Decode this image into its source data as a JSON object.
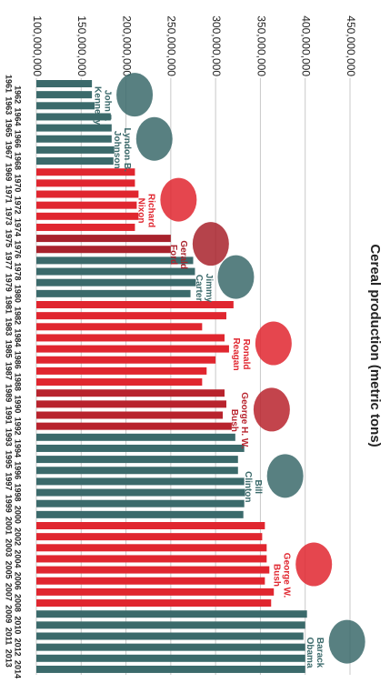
{
  "chart_data": {
    "type": "bar",
    "orientation": "horizontal",
    "title": "Cereal production (metric tons)",
    "categories": [
      "1961",
      "1962",
      "1963",
      "1964",
      "1965",
      "1966",
      "1967",
      "1968",
      "1969",
      "1970",
      "1971",
      "1972",
      "1973",
      "1974",
      "1975",
      "1976",
      "1977",
      "1978",
      "1979",
      "1980",
      "1981",
      "1982",
      "1983",
      "1984",
      "1985",
      "1986",
      "1987",
      "1988",
      "1989",
      "1990",
      "1991",
      "1992",
      "1993",
      "1994",
      "1995",
      "1996",
      "1997",
      "1998",
      "1999",
      "2000",
      "2001",
      "2002",
      "2003",
      "2004",
      "2005",
      "2006",
      "2007",
      "2008",
      "2009",
      "2010",
      "2011",
      "2012",
      "2013",
      "2014"
    ],
    "values": [
      162000000,
      162000000,
      165000000,
      183000000,
      184000000,
      184000000,
      187000000,
      186000000,
      210000000,
      210000000,
      214000000,
      212000000,
      214000000,
      210000000,
      250000000,
      250000000,
      275000000,
      277000000,
      278000000,
      272000000,
      320000000,
      312000000,
      285000000,
      310000000,
      315000000,
      300000000,
      290000000,
      285000000,
      310000000,
      312000000,
      308000000,
      318000000,
      322000000,
      332000000,
      325000000,
      325000000,
      332000000,
      333000000,
      332000000,
      331000000,
      355000000,
      352000000,
      357000000,
      357000000,
      360000000,
      355000000,
      365000000,
      362000000,
      402000000,
      400000000,
      398000000,
      400000000,
      400000000,
      400000000
    ],
    "colors": [
      "#3b6a6b",
      "#3b6a6b",
      "#3b6a6b",
      "#3b6a6b",
      "#3b6a6b",
      "#3b6a6b",
      "#3b6a6b",
      "#3b6a6b",
      "#e0262f",
      "#e0262f",
      "#e0262f",
      "#e0262f",
      "#e0262f",
      "#e0262f",
      "#a8222c",
      "#a8222c",
      "#3b6a6b",
      "#3b6a6b",
      "#3b6a6b",
      "#3b6a6b",
      "#e0262f",
      "#e0262f",
      "#e0262f",
      "#e0262f",
      "#e0262f",
      "#e0262f",
      "#e0262f",
      "#e0262f",
      "#b8232d",
      "#b8232d",
      "#b8232d",
      "#b8232d",
      "#3b6a6b",
      "#3b6a6b",
      "#3b6a6b",
      "#3b6a6b",
      "#3b6a6b",
      "#3b6a6b",
      "#3b6a6b",
      "#3b6a6b",
      "#e0262f",
      "#e0262f",
      "#e0262f",
      "#e0262f",
      "#e0262f",
      "#e0262f",
      "#e0262f",
      "#e0262f",
      "#3b6a6b",
      "#3b6a6b",
      "#3b6a6b",
      "#3b6a6b",
      "#3b6a6b",
      "#3b6a6b"
    ],
    "ylim": [
      100000000,
      450000000
    ],
    "yticks": [
      {
        "value": 100000000,
        "label": "100,000,000"
      },
      {
        "value": 150000000,
        "label": "150,000,000"
      },
      {
        "value": 200000000,
        "label": "200,000,000"
      },
      {
        "value": 250000000,
        "label": "250,000,000"
      },
      {
        "value": 300000000,
        "label": "300,000,000"
      },
      {
        "value": 350000000,
        "label": "350,000,000"
      },
      {
        "value": 400000000,
        "label": "400,000,000"
      },
      {
        "value": 450000000,
        "label": "450,000,000"
      }
    ],
    "grid": true,
    "annotations": [
      [
        "John F.",
        "Kennedy"
      ],
      [
        "Lyndon B.",
        "Johnson"
      ],
      [
        "Richard",
        "Nixon"
      ],
      [
        "Gerald",
        "Ford"
      ],
      [
        "Jimmy",
        "Carter"
      ],
      [
        "Ronald",
        "Reagan"
      ],
      [
        "George H. W.",
        "Bush"
      ],
      [
        "Bill",
        "Clinton"
      ],
      [
        "George W.",
        "Bush"
      ],
      [
        "Barack",
        "Obama"
      ]
    ]
  }
}
